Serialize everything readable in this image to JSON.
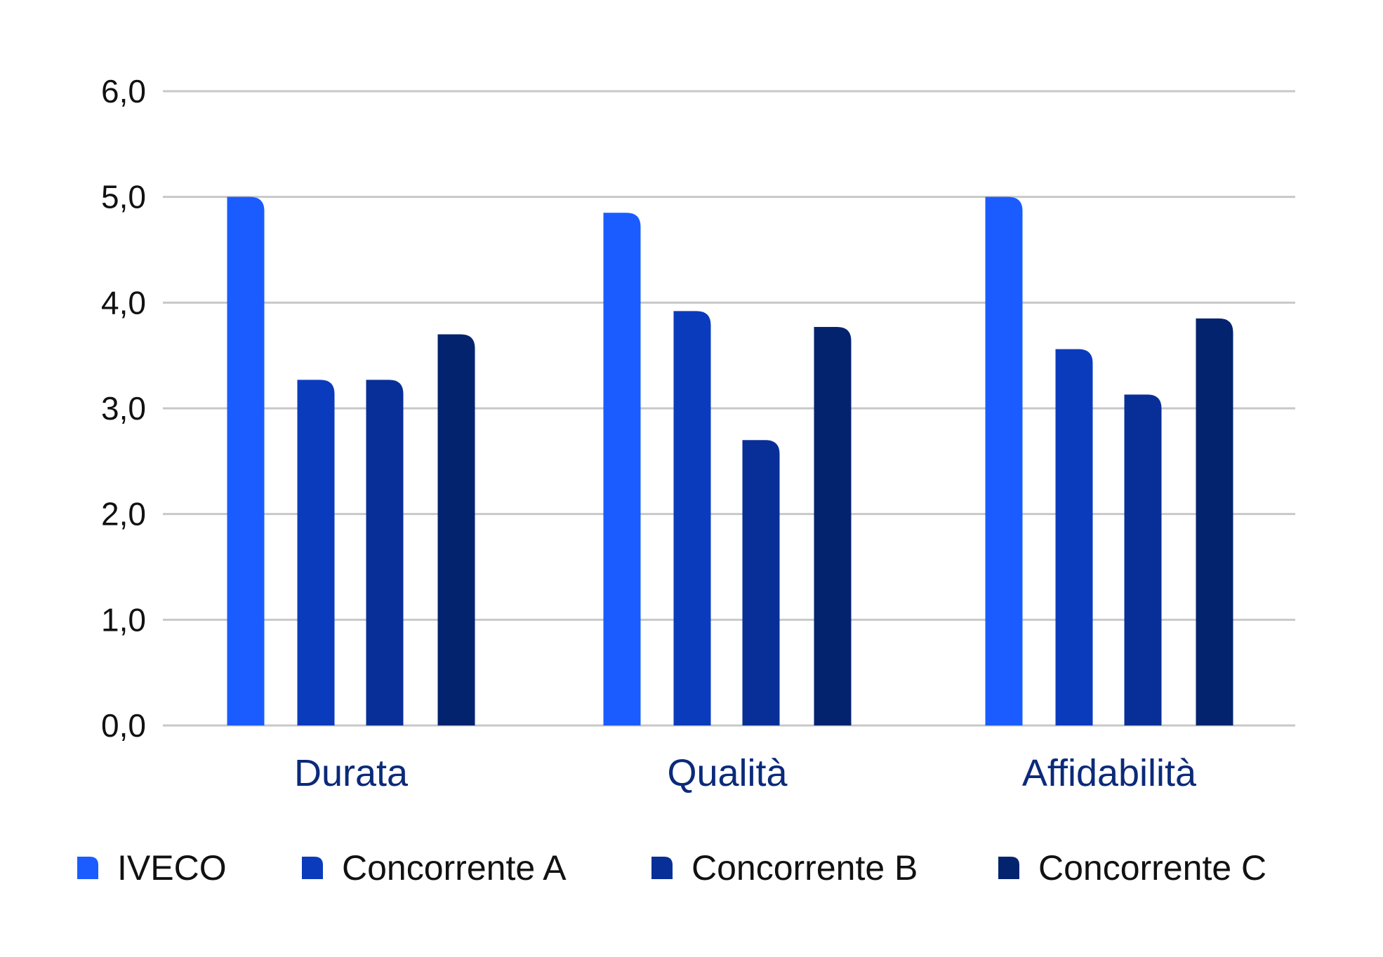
{
  "chart_data": {
    "type": "bar",
    "categories": [
      "Durata",
      "Qualità",
      "Affidabilità"
    ],
    "series": [
      {
        "name": "IVECO",
        "color": "#1a5cff",
        "values": [
          5.0,
          4.85,
          5.0
        ]
      },
      {
        "name": "Concorrente A",
        "color": "#0b3bbd",
        "values": [
          3.27,
          3.92,
          3.56
        ]
      },
      {
        "name": "Concorrente B",
        "color": "#082f97",
        "values": [
          3.27,
          2.7,
          3.13
        ]
      },
      {
        "name": "Concorrente C",
        "color": "#04236f",
        "values": [
          3.7,
          3.77,
          3.85
        ]
      }
    ],
    "ylim": [
      0,
      6
    ],
    "yticks": [
      "0,0",
      "1,0",
      "2,0",
      "3,0",
      "4,0",
      "5,0",
      "6,0"
    ],
    "grid": true,
    "legend_position": "bottom"
  }
}
